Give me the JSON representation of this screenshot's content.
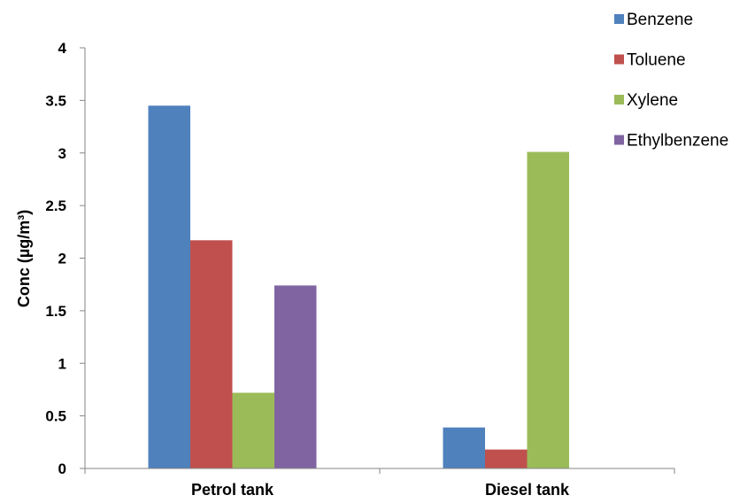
{
  "chart_data": {
    "type": "bar",
    "title": "",
    "xlabel": "",
    "ylabel": "Conc (µg/m³)",
    "ylim": [
      0,
      4
    ],
    "yticks": [
      "0",
      "0.5",
      "1",
      "1.5",
      "2",
      "2.5",
      "3",
      "3.5",
      "4"
    ],
    "categories": [
      "Petrol tank",
      "Diesel tank"
    ],
    "series": [
      {
        "name": "Benzene",
        "color": "#4F81BD",
        "values": [
          3.45,
          0.39
        ]
      },
      {
        "name": "Toluene",
        "color": "#C0504D",
        "values": [
          2.17,
          0.18
        ]
      },
      {
        "name": "Xylene",
        "color": "#9BBB59",
        "values": [
          0.72,
          3.01
        ]
      },
      {
        "name": "Ethylbenzene",
        "color": "#8064A2",
        "values": [
          1.74,
          0
        ]
      }
    ],
    "grid": false,
    "legend_position": "top-right"
  }
}
